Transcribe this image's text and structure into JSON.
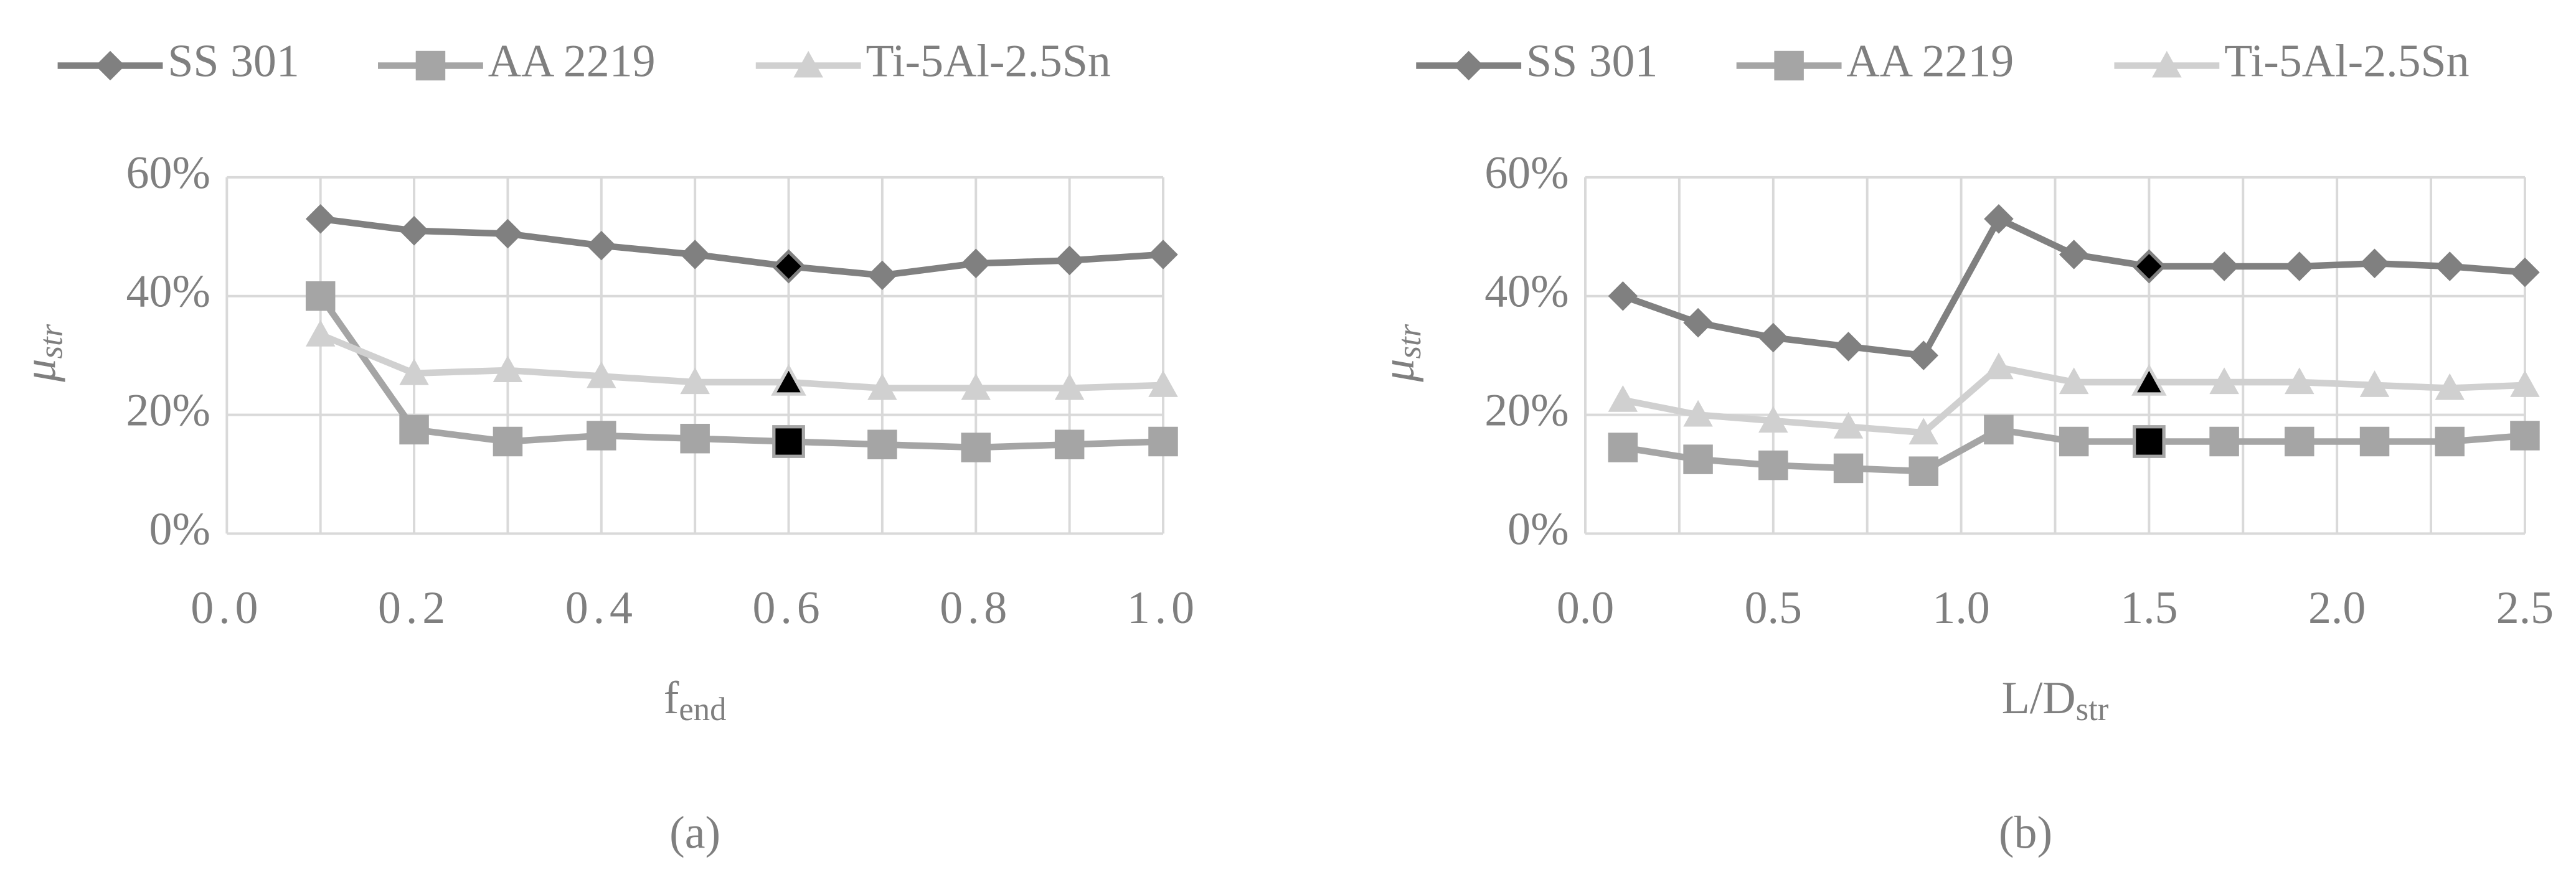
{
  "chart_data": [
    {
      "type": "line",
      "caption": "(a)",
      "legend": "top",
      "xlabel": {
        "main": "f",
        "sub": "end"
      },
      "ylabel": {
        "main": "μ",
        "sub": "str"
      },
      "xlim": [
        0,
        1
      ],
      "xticks": [
        {
          "value": 0,
          "label": "0.0"
        },
        0.2,
        0.4,
        0.6,
        0.8,
        {
          "value": 1,
          "label": "1.0"
        }
      ],
      "x_gridlines": [
        0.1,
        0.2,
        0.3,
        0.4,
        0.5,
        0.6,
        0.7,
        0.8,
        0.9,
        1
      ],
      "ylim": [
        0,
        60
      ],
      "yticks": [
        {
          "value": 0,
          "label": "0%"
        },
        {
          "value": 20,
          "label": "20%"
        },
        {
          "value": 40,
          "label": "40%"
        },
        {
          "value": 60,
          "label": "60%"
        }
      ],
      "grid": true,
      "highlight_x": 0.6,
      "highlight_color": "#000000",
      "x": [
        0.1,
        0.2,
        0.3,
        0.4,
        0.5,
        0.6,
        0.7,
        0.8,
        0.9,
        1
      ],
      "series": [
        {
          "name": "SS 301",
          "color": "#808080",
          "marker": "diamond",
          "values": [
            53,
            51,
            50.5,
            48.5,
            47,
            45,
            43.5,
            45.5,
            46,
            47
          ]
        },
        {
          "name": "AA 2219",
          "color": "#a5a5a5",
          "marker": "square",
          "values": [
            40,
            17.5,
            15.5,
            16.5,
            16,
            15.5,
            15,
            14.5,
            15,
            15.5
          ]
        },
        {
          "name": "Ti-5Al-2.5Sn",
          "color": "#d0d0d0",
          "marker": "triangle",
          "values": [
            33.5,
            27,
            27.5,
            26.5,
            25.5,
            25.5,
            24.5,
            24.5,
            24.5,
            25
          ]
        }
      ]
    },
    {
      "type": "line",
      "caption": "(b)",
      "legend": "top",
      "xlabel": {
        "main": "L/D",
        "sub": "str"
      },
      "ylabel": {
        "main": "μ",
        "sub": "str"
      },
      "xlim": [
        0,
        2.5
      ],
      "xticks": [
        {
          "value": 0,
          "label": "0.0"
        },
        0.5,
        {
          "value": 1,
          "label": "1.0"
        },
        1.5,
        {
          "value": 2,
          "label": "2.0"
        },
        2.5
      ],
      "x_gridlines": [
        0.25,
        0.5,
        0.75,
        1,
        1.25,
        1.5,
        1.75,
        2,
        2.25,
        2.5
      ],
      "ylim": [
        0,
        60
      ],
      "yticks": [
        {
          "value": 0,
          "label": "0%"
        },
        {
          "value": 20,
          "label": "20%"
        },
        {
          "value": 40,
          "label": "40%"
        },
        {
          "value": 60,
          "label": "60%"
        }
      ],
      "grid": true,
      "highlight_x": 1.5,
      "highlight_color": "#000000",
      "x": [
        0.1,
        0.3,
        0.5,
        0.7,
        0.9,
        1.1,
        1.3,
        1.5,
        1.7,
        1.9,
        2.1,
        2.3,
        2.5
      ],
      "series": [
        {
          "name": "SS 301",
          "color": "#808080",
          "marker": "diamond",
          "values": [
            40,
            35.5,
            33,
            31.5,
            30,
            53,
            47,
            45,
            45,
            45,
            45.5,
            45,
            44
          ]
        },
        {
          "name": "AA 2219",
          "color": "#a5a5a5",
          "marker": "square",
          "values": [
            14.5,
            12.5,
            11.5,
            11,
            10.5,
            17.5,
            15.5,
            15.5,
            15.5,
            15.5,
            15.5,
            15.5,
            16.5
          ]
        },
        {
          "name": "Ti-5Al-2.5Sn",
          "color": "#d0d0d0",
          "marker": "triangle",
          "values": [
            22.5,
            20,
            19,
            18,
            17,
            28,
            25.5,
            25.5,
            25.5,
            25.5,
            25,
            24.5,
            25
          ]
        }
      ]
    }
  ]
}
